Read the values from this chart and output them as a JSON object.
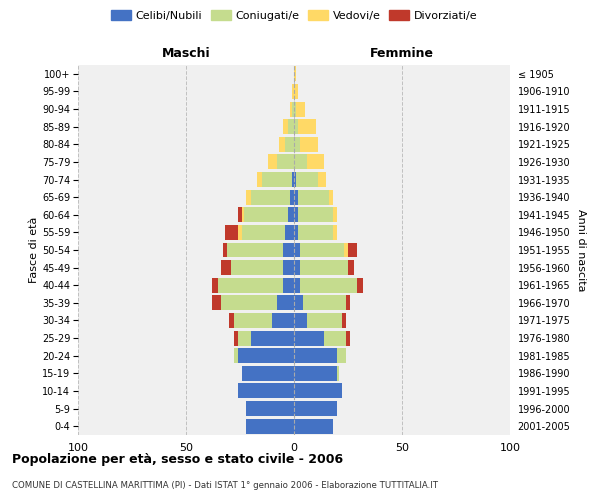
{
  "age_groups": [
    "0-4",
    "5-9",
    "10-14",
    "15-19",
    "20-24",
    "25-29",
    "30-34",
    "35-39",
    "40-44",
    "45-49",
    "50-54",
    "55-59",
    "60-64",
    "65-69",
    "70-74",
    "75-79",
    "80-84",
    "85-89",
    "90-94",
    "95-99",
    "100+"
  ],
  "birth_years": [
    "2001-2005",
    "1996-2000",
    "1991-1995",
    "1986-1990",
    "1981-1985",
    "1976-1980",
    "1971-1975",
    "1966-1970",
    "1961-1965",
    "1956-1960",
    "1951-1955",
    "1946-1950",
    "1941-1945",
    "1936-1940",
    "1931-1935",
    "1926-1930",
    "1921-1925",
    "1916-1920",
    "1911-1915",
    "1906-1910",
    "≤ 1905"
  ],
  "maschi": {
    "celibi": [
      22,
      22,
      26,
      24,
      26,
      20,
      10,
      8,
      5,
      5,
      5,
      4,
      3,
      2,
      1,
      0,
      0,
      0,
      0,
      0,
      0
    ],
    "coniugati": [
      0,
      0,
      0,
      0,
      2,
      6,
      18,
      26,
      30,
      24,
      26,
      20,
      20,
      18,
      14,
      8,
      4,
      3,
      1,
      0,
      0
    ],
    "vedovi": [
      0,
      0,
      0,
      0,
      0,
      0,
      0,
      0,
      0,
      0,
      0,
      2,
      1,
      2,
      2,
      4,
      3,
      2,
      1,
      1,
      0
    ],
    "divorziati": [
      0,
      0,
      0,
      0,
      0,
      2,
      2,
      4,
      3,
      5,
      2,
      6,
      2,
      0,
      0,
      0,
      0,
      0,
      0,
      0,
      0
    ]
  },
  "femmine": {
    "nubili": [
      18,
      20,
      22,
      20,
      20,
      14,
      6,
      4,
      3,
      3,
      3,
      2,
      2,
      2,
      1,
      0,
      0,
      0,
      0,
      0,
      0
    ],
    "coniugate": [
      0,
      0,
      0,
      1,
      4,
      10,
      16,
      20,
      26,
      22,
      20,
      16,
      16,
      14,
      10,
      6,
      3,
      2,
      1,
      0,
      0
    ],
    "vedove": [
      0,
      0,
      0,
      0,
      0,
      0,
      0,
      0,
      0,
      0,
      2,
      2,
      2,
      2,
      4,
      8,
      8,
      8,
      4,
      2,
      1
    ],
    "divorziate": [
      0,
      0,
      0,
      0,
      0,
      2,
      2,
      2,
      3,
      3,
      4,
      0,
      0,
      0,
      0,
      0,
      0,
      0,
      0,
      0,
      0
    ]
  },
  "colors": {
    "celibi": "#4472C4",
    "coniugati": "#C5DC8E",
    "vedovi": "#FFD966",
    "divorziati": "#C0392B"
  },
  "title": "Popolazione per età, sesso e stato civile - 2006",
  "subtitle": "COMUNE DI CASTELLINA MARITTIMA (PI) - Dati ISTAT 1° gennaio 2006 - Elaborazione TUTTITALIA.IT",
  "xlabel_left": "Maschi",
  "xlabel_right": "Femmine",
  "ylabel": "Fasce di età",
  "ylabel_right": "Anni di nascita",
  "xlim": 100,
  "bg_color": "#ffffff",
  "plot_bg_color": "#f0f0f0"
}
